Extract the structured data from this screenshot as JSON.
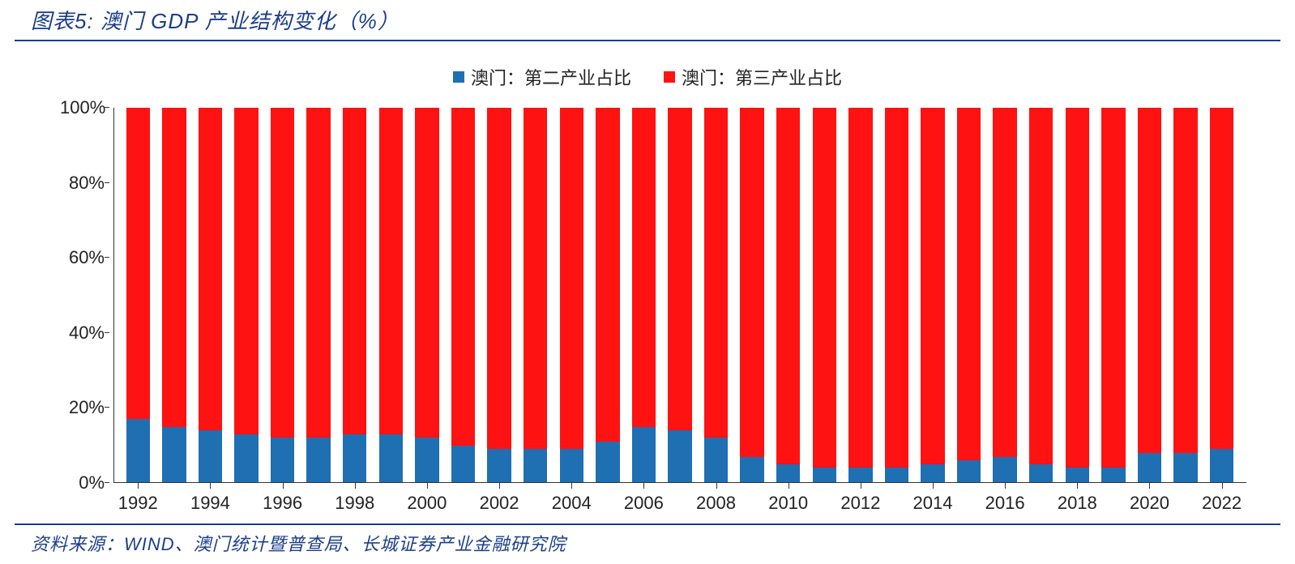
{
  "title": "图表5:  澳门 GDP 产业结构变化（%）",
  "source": "资料来源：WIND、澳门统计暨普查局、长城证券产业金融研究院",
  "colors": {
    "title": "#1b3e8a",
    "rule": "#1b3e8a",
    "axis": "#333333",
    "background": "#ffffff"
  },
  "legend": {
    "items": [
      {
        "label": "澳门：第二产业占比",
        "color": "#1f6fb3"
      },
      {
        "label": "澳门：第三产业占比",
        "color": "#ff1212"
      }
    ],
    "fontsize": 22
  },
  "chart": {
    "type": "stacked-bar",
    "ylim": [
      0,
      100
    ],
    "ytick_step": 20,
    "ytick_suffix": "%",
    "yticks": [
      0,
      20,
      40,
      60,
      80,
      100
    ],
    "bar_width_ratio": 0.66,
    "tick_fontsize": 22,
    "years": [
      1992,
      1993,
      1994,
      1995,
      1996,
      1997,
      1998,
      1999,
      2000,
      2001,
      2002,
      2003,
      2004,
      2005,
      2006,
      2007,
      2008,
      2009,
      2010,
      2011,
      2012,
      2013,
      2014,
      2015,
      2016,
      2017,
      2018,
      2019,
      2020,
      2021,
      2022
    ],
    "x_label_every": 2,
    "x_label_start": 1992,
    "series": [
      {
        "name": "secondary_industry_share",
        "label": "澳门：第二产业占比",
        "color": "#1f6fb3",
        "values": [
          17,
          15,
          14,
          13,
          12,
          12,
          13,
          13,
          12,
          10,
          9,
          9,
          9,
          11,
          15,
          14,
          12,
          7,
          5,
          4,
          4,
          4,
          5,
          6,
          7,
          5,
          4,
          4,
          8,
          8,
          9
        ]
      },
      {
        "name": "tertiary_industry_share",
        "label": "澳门：第三产业占比",
        "color": "#ff1212",
        "values": [
          83,
          85,
          86,
          87,
          88,
          88,
          87,
          87,
          88,
          90,
          91,
          91,
          91,
          89,
          85,
          86,
          88,
          93,
          95,
          96,
          96,
          96,
          95,
          94,
          93,
          95,
          96,
          96,
          92,
          92,
          91
        ]
      }
    ]
  }
}
